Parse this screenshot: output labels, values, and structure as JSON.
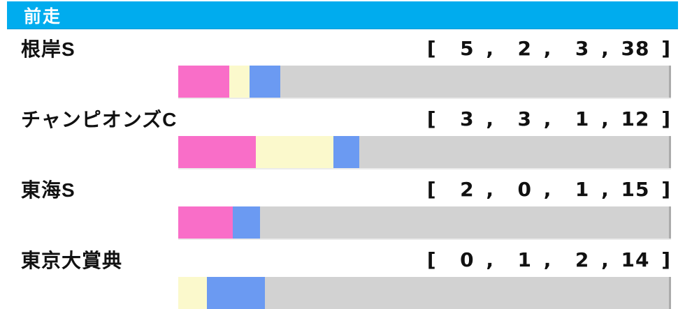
{
  "page": {
    "bg": "#ffffff"
  },
  "header": {
    "title": "前走",
    "bg": "#00ACEE",
    "text_color": "#ffffff"
  },
  "chart_data": {
    "type": "bar",
    "stacked": true,
    "orientation": "horizontal",
    "title": "前走",
    "categories": [
      "根岸S",
      "チャンピオンズC",
      "東海S",
      "東京大賞典"
    ],
    "series": [
      {
        "name": "pink-segment",
        "color": "#F96EC8",
        "values": [
          5,
          3,
          2,
          0
        ]
      },
      {
        "name": "cream-segment",
        "color": "#FBF9CC",
        "values": [
          2,
          3,
          0,
          1
        ]
      },
      {
        "name": "blue-segment",
        "color": "#6B9AF2",
        "values": [
          3,
          1,
          1,
          2
        ]
      },
      {
        "name": "gray-segment",
        "color": "#D2D2D2",
        "values": [
          38,
          12,
          15,
          14
        ]
      }
    ],
    "value_labels": [
      "[  5 ,  2 ,  3 , 38 ]",
      "[  3 ,  3 ,  1 , 12 ]",
      "[  2 ,  0 ,  1 , 15 ]",
      "[  0 ,  1 ,  2 , 14 ]"
    ],
    "bar_track_color": "#D2D2D2",
    "bar_edge_color": "#ABABAB",
    "legend": null,
    "grid": false
  }
}
